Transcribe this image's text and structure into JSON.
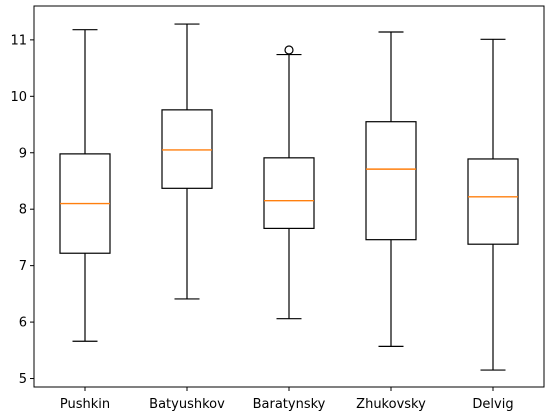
{
  "chart_data": {
    "type": "box",
    "categories": [
      "Pushkin",
      "Batyushkov",
      "Baratynsky",
      "Zhukovsky",
      "Delvig"
    ],
    "boxes": [
      {
        "whisker_low": 5.66,
        "q1": 7.22,
        "median": 8.1,
        "q3": 8.98,
        "whisker_high": 11.18,
        "outliers": []
      },
      {
        "whisker_low": 6.41,
        "q1": 8.37,
        "median": 9.05,
        "q3": 9.76,
        "whisker_high": 11.28,
        "outliers": []
      },
      {
        "whisker_low": 6.06,
        "q1": 7.66,
        "median": 8.15,
        "q3": 8.91,
        "whisker_high": 10.74,
        "outliers": [
          10.82
        ]
      },
      {
        "whisker_low": 5.57,
        "q1": 7.46,
        "median": 8.71,
        "q3": 9.55,
        "whisker_high": 11.14,
        "outliers": []
      },
      {
        "whisker_low": 5.15,
        "q1": 7.38,
        "median": 8.22,
        "q3": 8.89,
        "whisker_high": 11.01,
        "outliers": []
      }
    ],
    "y_ticks": [
      5,
      6,
      7,
      8,
      9,
      10,
      11
    ],
    "ylim": [
      4.85,
      11.6
    ],
    "title": "",
    "xlabel": "",
    "ylabel": "",
    "grid": false,
    "colors": {
      "box": "#000000",
      "median": "#ff7f0e",
      "whisker": "#000000",
      "outlier": "#000000",
      "axes": "#000000"
    }
  }
}
